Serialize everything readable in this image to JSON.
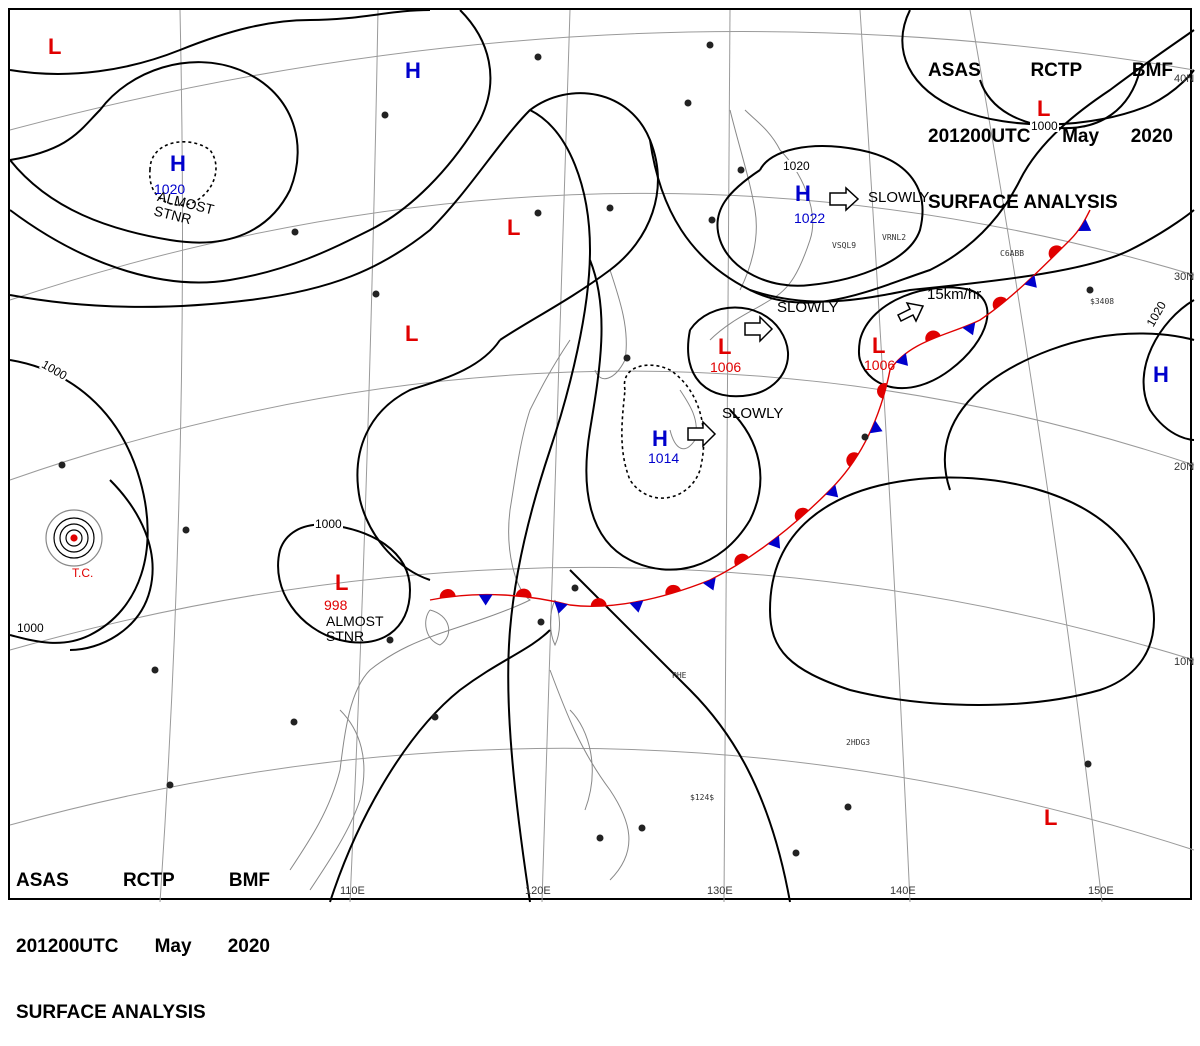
{
  "header": {
    "line1": [
      "ASAS",
      "RCTP",
      "BMF"
    ],
    "line2": [
      "201200UTC",
      "May",
      "2020"
    ],
    "line3": "SURFACE ANALYSIS"
  },
  "colors": {
    "high": "#0000cc",
    "low": "#e00000",
    "isobar": "#000000",
    "coast": "#888888",
    "grid": "#9a9a9a",
    "front_warm": "#e00000",
    "front_cold": "#0000cc"
  },
  "centers": [
    {
      "type": "H",
      "value": "1020"
    },
    {
      "type": "H",
      "value": ""
    },
    {
      "type": "H",
      "value": "1022"
    },
    {
      "type": "H",
      "value": "1014"
    },
    {
      "type": "H",
      "value": ""
    },
    {
      "type": "L",
      "value": ""
    },
    {
      "type": "L",
      "value": "1000"
    },
    {
      "type": "L",
      "value": ""
    },
    {
      "type": "L",
      "value": ""
    },
    {
      "type": "L",
      "value": "1006"
    },
    {
      "type": "L",
      "value": "1006"
    },
    {
      "type": "L",
      "value": "998"
    },
    {
      "type": "L",
      "value": ""
    }
  ],
  "motions": [
    {
      "text": "SLOWLY",
      "icon": "motion-arrow-icon"
    },
    {
      "text": "SLOWLY",
      "icon": "motion-arrow-icon"
    },
    {
      "text": "SLOWLY",
      "icon": "motion-arrow-icon"
    },
    {
      "text": "15km/hr",
      "icon": "motion-arrow-icon"
    }
  ],
  "notes": [
    {
      "text": "ALMOST STNR"
    },
    {
      "text": "ALMOST STNR"
    }
  ],
  "isobar_labels": [
    "1000",
    "1000",
    "1000",
    "1000",
    "1020",
    "1020"
  ],
  "latitude_labels": [
    "40N",
    "30N",
    "20N",
    "10N"
  ],
  "longitude_labels": [
    "110E",
    "120E",
    "130E",
    "140E",
    "150E"
  ],
  "tropical_cyclone_label": "T.C.",
  "station_labels": [
    "VSQL9",
    "VRNL2",
    "C6ABB",
    "PHE",
    "2HDG3",
    "$3408",
    "$124$"
  ]
}
